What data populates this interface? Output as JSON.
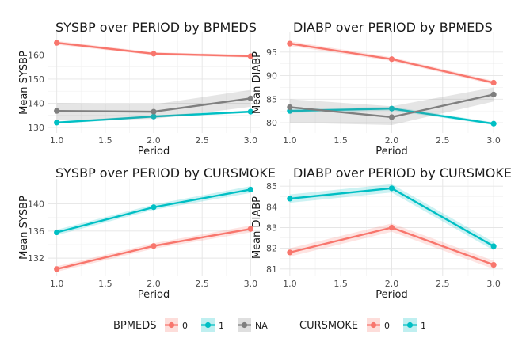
{
  "chart_data": [
    {
      "type": "line",
      "title": "SYSBP over PERIOD by BPMEDS",
      "xlabel": "Period",
      "ylabel": "Mean SYSBP",
      "x": [
        1,
        2,
        3
      ],
      "xlim": [
        0.97,
        3.03
      ],
      "xticks": [
        "1.0",
        "1.5",
        "2.0",
        "2.5",
        "3.0"
      ],
      "xtick_values": [
        1.0,
        1.5,
        2.0,
        2.5,
        3.0
      ],
      "ylim": [
        129,
        168
      ],
      "yticks": [
        "130",
        "140",
        "150",
        "160"
      ],
      "ytick_values": [
        130,
        140,
        150,
        160
      ],
      "grid": true,
      "series": [
        {
          "name": "0",
          "color": "#F8766D",
          "values": [
            165.0,
            160.5,
            159.5
          ],
          "lower": [
            164.2,
            159.9,
            158.9
          ],
          "upper": [
            165.8,
            161.1,
            160.1
          ]
        },
        {
          "name": "1",
          "color": "#00BFC4",
          "values": [
            132.0,
            134.5,
            136.5
          ],
          "lower": [
            131.5,
            134.0,
            136.0
          ],
          "upper": [
            132.5,
            135.0,
            137.0
          ]
        },
        {
          "name": "NA",
          "color": "#7F7F7F",
          "values": [
            136.8,
            136.5,
            142.0
          ],
          "lower": [
            133.0,
            133.5,
            138.5
          ],
          "upper": [
            140.0,
            139.5,
            145.5
          ]
        }
      ]
    },
    {
      "type": "line",
      "title": "DIABP over PERIOD by BPMEDS",
      "xlabel": "Period",
      "ylabel": "Mean DIABP",
      "x": [
        1,
        2,
        3
      ],
      "xlim": [
        0.97,
        3.03
      ],
      "xticks": [
        "1.0",
        "1.5",
        "2.0",
        "2.5",
        "3.0"
      ],
      "xtick_values": [
        1.0,
        1.5,
        2.0,
        2.5,
        3.0
      ],
      "ylim": [
        78.5,
        98.5
      ],
      "yticks": [
        "80",
        "85",
        "90",
        "95"
      ],
      "ytick_values": [
        80,
        85,
        90,
        95
      ],
      "grid": true,
      "series": [
        {
          "name": "0",
          "color": "#F8766D",
          "values": [
            96.8,
            93.5,
            88.5
          ],
          "lower": [
            96.3,
            93.1,
            88.1
          ],
          "upper": [
            97.3,
            93.9,
            88.9
          ]
        },
        {
          "name": "1",
          "color": "#00BFC4",
          "values": [
            82.5,
            83.0,
            79.8
          ],
          "lower": [
            82.1,
            82.6,
            79.5
          ],
          "upper": [
            82.9,
            83.4,
            80.1
          ]
        },
        {
          "name": "NA",
          "color": "#7F7F7F",
          "values": [
            83.3,
            81.2,
            86.0
          ],
          "lower": [
            80.0,
            79.5,
            84.5
          ],
          "upper": [
            85.0,
            83.5,
            87.5
          ]
        }
      ]
    },
    {
      "type": "line",
      "title": "SYSBP over PERIOD by CURSMOKE",
      "xlabel": "Period",
      "ylabel": "Mean SYSBP",
      "x": [
        1,
        2,
        3
      ],
      "xlim": [
        0.97,
        3.03
      ],
      "xticks": [
        "1.0",
        "1.5",
        "2.0",
        "2.5",
        "3.0"
      ],
      "xtick_values": [
        1.0,
        1.5,
        2.0,
        2.5,
        3.0
      ],
      "ylim": [
        129.8,
        143.2
      ],
      "yticks": [
        "132",
        "136",
        "140"
      ],
      "ytick_values": [
        132,
        136,
        140
      ],
      "grid": true,
      "series": [
        {
          "name": "0",
          "color": "#F8766D",
          "values": [
            130.4,
            133.8,
            136.3
          ],
          "lower": [
            130.0,
            133.4,
            135.8
          ],
          "upper": [
            130.8,
            134.2,
            136.8
          ]
        },
        {
          "name": "1",
          "color": "#00BFC4",
          "values": [
            135.8,
            139.5,
            142.1
          ],
          "lower": [
            135.4,
            139.1,
            141.6
          ],
          "upper": [
            136.2,
            139.9,
            142.6
          ]
        }
      ]
    },
    {
      "type": "line",
      "title": "DIABP over PERIOD by CURSMOKE",
      "xlabel": "Period",
      "ylabel": "Mean DIABP",
      "x": [
        1,
        2,
        3
      ],
      "xlim": [
        0.97,
        3.03
      ],
      "xticks": [
        "1.0",
        "1.5",
        "2.0",
        "2.5",
        "3.0"
      ],
      "xtick_values": [
        1.0,
        1.5,
        2.0,
        2.5,
        3.0
      ],
      "ylim": [
        80.8,
        85.2
      ],
      "yticks": [
        "81",
        "82",
        "83",
        "84",
        "85"
      ],
      "ytick_values": [
        81,
        82,
        83,
        84,
        85
      ],
      "grid": true,
      "series": [
        {
          "name": "0",
          "color": "#F8766D",
          "values": [
            81.8,
            83.0,
            81.2
          ],
          "lower": [
            81.6,
            82.8,
            81.0
          ],
          "upper": [
            82.0,
            83.2,
            81.4
          ]
        },
        {
          "name": "1",
          "color": "#00BFC4",
          "values": [
            84.4,
            84.9,
            82.1
          ],
          "lower": [
            84.2,
            84.7,
            81.9
          ],
          "upper": [
            84.6,
            85.1,
            82.3
          ]
        }
      ]
    }
  ],
  "legends": [
    {
      "title": "BPMEDS",
      "items": [
        {
          "label": "0",
          "color": "#F8766D"
        },
        {
          "label": "1",
          "color": "#00BFC4"
        },
        {
          "label": "NA",
          "color": "#7F7F7F"
        }
      ]
    },
    {
      "title": "CURSMOKE",
      "items": [
        {
          "label": "0",
          "color": "#F8766D"
        },
        {
          "label": "1",
          "color": "#00BFC4"
        }
      ]
    }
  ]
}
